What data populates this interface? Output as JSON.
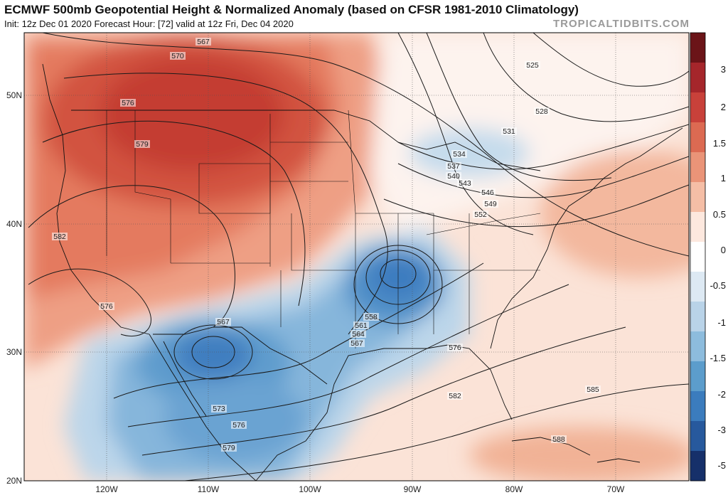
{
  "header": {
    "title": "ECMWF 500mb Geopotential Height & Normalized Anomaly (based on CFSR 1981-2010 Climatology)",
    "subtitle": "Init: 12z Dec 01 2020   Forecast Hour: [72]   valid at 12z Fri, Dec 04 2020",
    "watermark": "TROPICALTIDBITS.COM"
  },
  "map": {
    "latitude_labels": [
      "50N",
      "40N",
      "30N",
      "20N"
    ],
    "longitude_labels": [
      "120W",
      "110W",
      "100W",
      "90W",
      "80W",
      "70W"
    ],
    "contour_labels": [
      "567",
      "570",
      "576",
      "579",
      "582",
      "576",
      "567",
      "573",
      "576",
      "579",
      "558",
      "561",
      "564",
      "567",
      "576",
      "582",
      "585",
      "588",
      "525",
      "528",
      "531",
      "534",
      "537",
      "540",
      "543",
      "546",
      "549",
      "552"
    ],
    "colors": {
      "strong_positive": "#c8413a",
      "positive": "#e8846a",
      "weak_positive": "#f6cdb8",
      "neutral": "#ffffff",
      "weak_negative": "#c6dcec",
      "negative": "#73a9d4",
      "strong_negative": "#3f7ec0"
    }
  },
  "colorbar": {
    "labels": [
      "3",
      "2",
      "1.5",
      "1",
      "0.5",
      "0",
      "-0.5",
      "-1",
      "-1.5",
      "-2",
      "-3",
      "-5"
    ],
    "colors": [
      "#6b1418",
      "#a5262b",
      "#c8413a",
      "#dc6a52",
      "#ea9478",
      "#f5bea6",
      "#fde8de",
      "#ffffff",
      "#dde9f3",
      "#b9d3e8",
      "#8dbcdd",
      "#5c9dcc",
      "#3b7cbd",
      "#27599d",
      "#16306a"
    ]
  }
}
